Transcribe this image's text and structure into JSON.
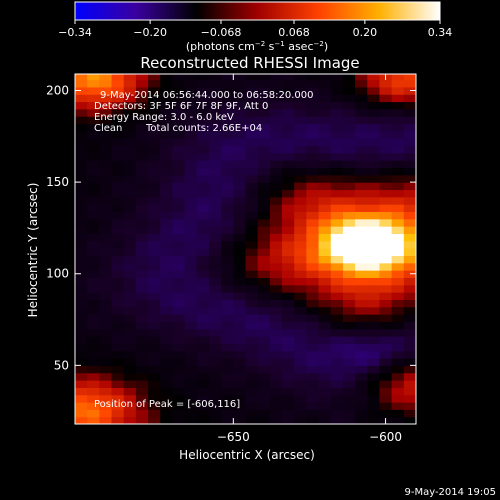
{
  "chart_data": {
    "type": "heatmap",
    "title": "Reconstructed RHESSI Image",
    "xlabel": "Heliocentric X (arcsec)",
    "ylabel": "Heliocentric Y (arcsec)",
    "xlim": [
      -702,
      -590
    ],
    "ylim": [
      18,
      209
    ],
    "xticks": [
      -650,
      -600,
      -550
    ],
    "yticks": [
      50,
      100,
      150,
      200
    ],
    "colorbar": {
      "range": [
        -0.34,
        0.34
      ],
      "ticks": [
        -0.34,
        -0.2,
        -0.068,
        0.068,
        0.2,
        0.34
      ],
      "tick_labels": [
        "−0.34",
        "−0.20",
        "−0.068",
        "0.068",
        "0.20",
        "0.34"
      ],
      "unit_text": "(photons cm",
      "unit_sup1": "−2",
      "unit_mid": " s",
      "unit_sup2": "−1",
      "unit_mid2": " asec",
      "unit_sup3": "−2",
      "unit_close": ")",
      "stops": [
        "#0000ff",
        "#3a00a0",
        "#000000",
        "#a00000",
        "#ff4000",
        "#ffb000",
        "#ffffff"
      ]
    },
    "peak": {
      "x": -606,
      "y": 116,
      "value": 0.34
    },
    "annotations": {
      "time": "9-May-2014 06:56:44.000 to 06:58:20.000",
      "detectors": "Detectors: 3F 5F 6F 7F 8F 9F, Att 0",
      "energy": "Energy Range: 3.0 - 6.0 keV",
      "clean": "Clean",
      "counts": "Total counts: 2.66E+04",
      "peak_text": "Position of Peak = [-606,116]"
    },
    "footer_date": "9-May-2014 19:05"
  }
}
